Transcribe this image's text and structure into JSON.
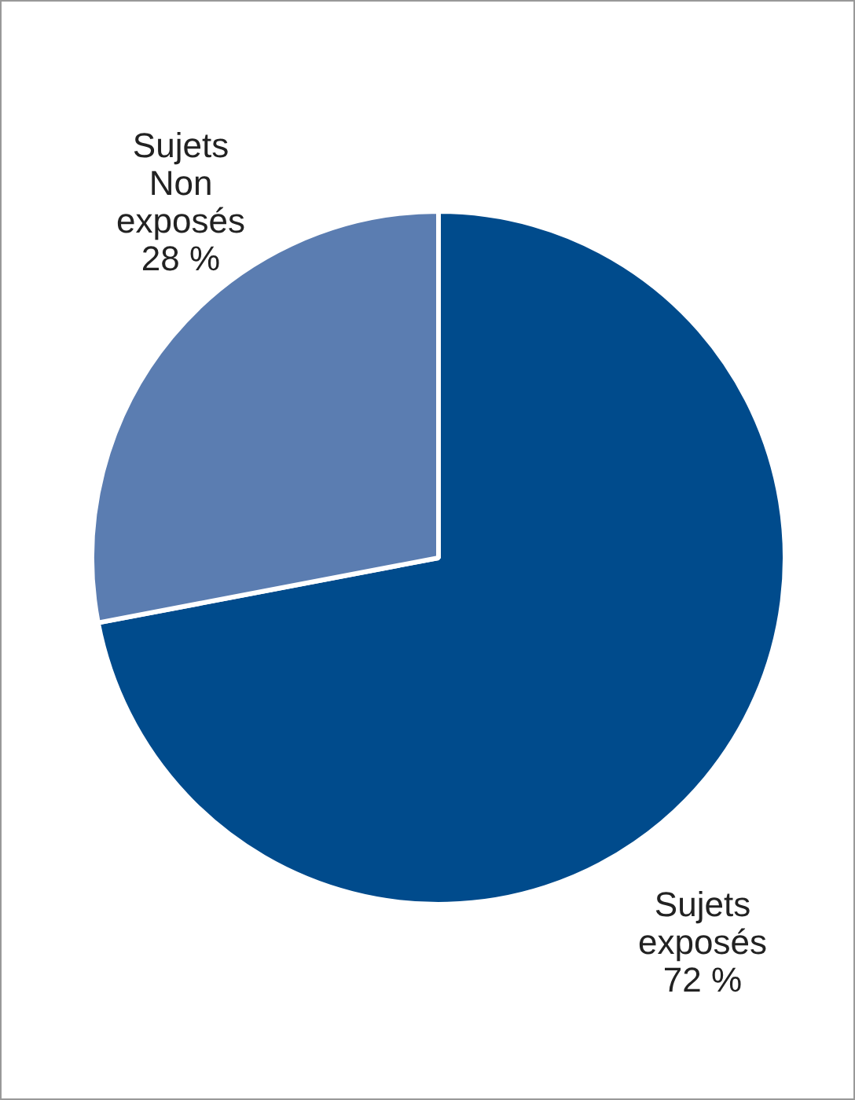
{
  "chart_data": {
    "type": "pie",
    "categories": [
      "Sujets exposés",
      "Sujets Non exposés"
    ],
    "values": [
      72,
      28
    ],
    "colors": [
      "#004b8c",
      "#5b7db1"
    ],
    "value_labels": [
      "72 %",
      "28 %"
    ],
    "legend": false
  }
}
